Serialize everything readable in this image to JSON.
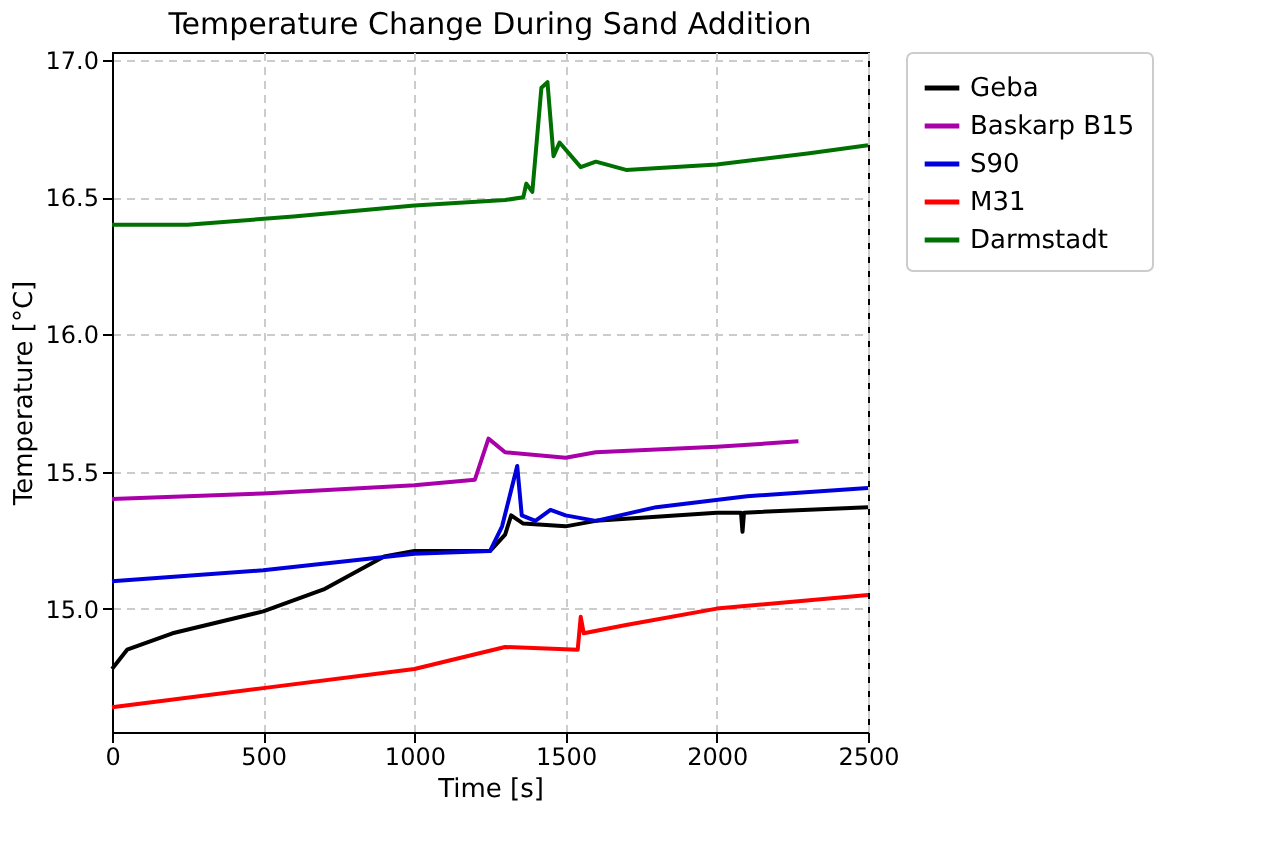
{
  "chart_data": {
    "type": "line",
    "title": "Temperature Change During Sand Addition",
    "xlabel": "Time [s]",
    "ylabel": "Temperature [°C]",
    "xlim": [
      0,
      2500
    ],
    "xticks": [
      0,
      500,
      1000,
      1500,
      2000,
      2500
    ],
    "ylim": [
      14.55,
      17.03
    ],
    "yticks": [
      {
        "value": 15,
        "label": "15.0"
      },
      15.5,
      {
        "value": 16,
        "label": "16.0"
      },
      16.5,
      {
        "value": 17,
        "label": "17.0"
      }
    ],
    "grid": true,
    "legend": "right",
    "line_style": "solid",
    "marker": "none",
    "series": [
      {
        "name": "Geba",
        "color": "#000000",
        "x": [
          0,
          50,
          200,
          500,
          700,
          900,
          1000,
          1250,
          1300,
          1320,
          1360,
          1500,
          1600,
          2000,
          2080,
          2085,
          2090,
          2500
        ],
        "values": [
          14.78,
          14.85,
          14.91,
          14.99,
          15.07,
          15.19,
          15.21,
          15.21,
          15.27,
          15.34,
          15.31,
          15.3,
          15.32,
          15.35,
          15.35,
          15.28,
          15.35,
          15.37
        ]
      },
      {
        "name": "Baskarp B15",
        "color": "#aa00aa",
        "x": [
          0,
          500,
          1000,
          1200,
          1245,
          1300,
          1500,
          1600,
          2000,
          2270
        ],
        "values": [
          15.4,
          15.42,
          15.45,
          15.47,
          15.62,
          15.57,
          15.55,
          15.57,
          15.59,
          15.61
        ]
      },
      {
        "name": "S90",
        "color": "#0000dd",
        "x": [
          0,
          500,
          1000,
          1250,
          1290,
          1340,
          1355,
          1400,
          1450,
          1500,
          1600,
          1800,
          2100,
          2500
        ],
        "values": [
          15.1,
          15.14,
          15.2,
          15.21,
          15.3,
          15.52,
          15.34,
          15.32,
          15.36,
          15.34,
          15.32,
          15.37,
          15.41,
          15.44
        ]
      },
      {
        "name": "M31",
        "color": "#ff0000",
        "x": [
          0,
          500,
          1000,
          1300,
          1540,
          1550,
          1560,
          1700,
          2000,
          2500
        ],
        "values": [
          14.64,
          14.71,
          14.78,
          14.86,
          14.85,
          14.97,
          14.91,
          14.94,
          15.0,
          15.05
        ]
      },
      {
        "name": "Darmstadt",
        "color": "#007000",
        "x": [
          0,
          250,
          600,
          1000,
          1300,
          1360,
          1370,
          1390,
          1420,
          1440,
          1460,
          1480,
          1550,
          1600,
          1700,
          2000,
          2300,
          2500
        ],
        "values": [
          16.4,
          16.4,
          16.43,
          16.47,
          16.49,
          16.5,
          16.55,
          16.52,
          16.9,
          16.92,
          16.65,
          16.7,
          16.61,
          16.63,
          16.6,
          16.62,
          16.66,
          16.69
        ]
      }
    ]
  }
}
